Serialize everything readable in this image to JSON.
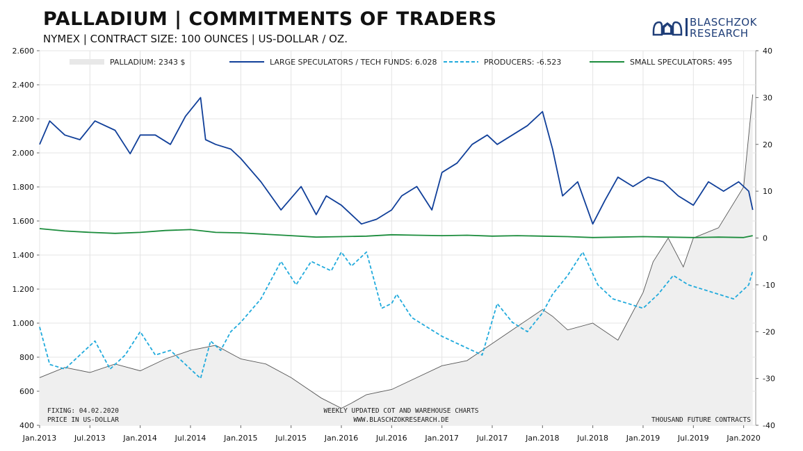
{
  "header": {
    "title": "PALLADIUM | COMMITMENTS OF TRADERS",
    "subtitle": "NYMEX | CONTRACT SIZE: 100 OUNCES | US-DOLLAR / OZ."
  },
  "logo": {
    "line1": "BLASCHZOK",
    "line2": "RESEARCH",
    "color": "#1f3e78"
  },
  "notes": {
    "fixing": "FIXING: 04.02.2020",
    "price_unit": "PRICE IN US-DOLLAR",
    "center1": "WEEKLY UPDATED COT AND WAREHOUSE CHARTS",
    "center2": "WWW.BLASCHZOKRESEARCH.DE",
    "right": "THOUSAND FUTURE CONTRACTS"
  },
  "chart_data": {
    "type": "line",
    "x_labels": [
      "Jan.2013",
      "Jul.2013",
      "Jan.2014",
      "Jul.2014",
      "Jan.2015",
      "Jul.2015",
      "Jan.2016",
      "Jul.2016",
      "Jan.2017",
      "Jul.2017",
      "Jan.2018",
      "Jul.2018",
      "Jan.2019",
      "Jul.2019",
      "Jan.2020"
    ],
    "x_range": [
      "2013-01",
      "2020-02"
    ],
    "y_left": {
      "range": [
        400,
        2600
      ],
      "ticks": [
        "400",
        "600",
        "800",
        "1.000",
        "1.200",
        "1.400",
        "1.600",
        "1.800",
        "2.000",
        "2.200",
        "2.400",
        "2.600"
      ]
    },
    "y_right": {
      "range": [
        -40,
        40
      ],
      "ticks": [
        "-40",
        "-30",
        "-20",
        "-10",
        "0",
        "10",
        "20",
        "30",
        "40"
      ]
    },
    "grid": true,
    "legend_position": "top",
    "series": [
      {
        "name": "PALLADIUM: 2343 $",
        "axis": "left",
        "style": "area",
        "color": "#e0e0e0",
        "line_color": "#555555",
        "x": [
          2013.0,
          2013.25,
          2013.5,
          2013.75,
          2014.0,
          2014.25,
          2014.5,
          2014.75,
          2015.0,
          2015.25,
          2015.5,
          2015.65,
          2015.8,
          2016.0,
          2016.1,
          2016.25,
          2016.5,
          2016.75,
          2017.0,
          2017.25,
          2017.5,
          2017.75,
          2018.0,
          2018.1,
          2018.25,
          2018.5,
          2018.75,
          2019.0,
          2019.1,
          2019.25,
          2019.4,
          2019.5,
          2019.75,
          2020.0,
          2020.09
        ],
        "values": [
          680,
          740,
          710,
          760,
          720,
          790,
          840,
          870,
          790,
          760,
          680,
          620,
          560,
          500,
          530,
          580,
          610,
          680,
          750,
          780,
          880,
          980,
          1080,
          1040,
          960,
          1000,
          900,
          1180,
          1360,
          1500,
          1330,
          1500,
          1560,
          1800,
          2343
        ]
      },
      {
        "name": "LARGE SPECULATORS / TECH FUNDS: 6.028",
        "axis": "right",
        "style": "solid",
        "color": "#103f99",
        "x": [
          2013.0,
          2013.1,
          2013.25,
          2013.4,
          2013.55,
          2013.75,
          2013.9,
          2014.0,
          2014.15,
          2014.3,
          2014.45,
          2014.6,
          2014.65,
          2014.75,
          2014.9,
          2015.0,
          2015.2,
          2015.4,
          2015.6,
          2015.75,
          2015.85,
          2016.0,
          2016.2,
          2016.35,
          2016.5,
          2016.6,
          2016.75,
          2016.9,
          2017.0,
          2017.15,
          2017.3,
          2017.45,
          2017.55,
          2017.7,
          2017.85,
          2018.0,
          2018.1,
          2018.2,
          2018.35,
          2018.5,
          2018.62,
          2018.75,
          2018.9,
          2019.05,
          2019.2,
          2019.35,
          2019.5,
          2019.65,
          2019.8,
          2019.95,
          2020.05,
          2020.09
        ],
        "values": [
          20,
          25,
          22,
          21,
          25,
          23,
          18,
          22,
          22,
          20,
          26,
          30,
          21,
          20,
          19,
          17,
          12,
          6,
          11,
          5,
          9,
          7,
          3,
          4,
          6,
          9,
          11,
          6,
          14,
          16,
          20,
          22,
          20,
          22,
          24,
          27,
          19,
          9,
          12,
          3,
          8,
          13,
          11,
          13,
          12,
          9,
          7,
          12,
          10,
          12,
          10,
          6
        ]
      },
      {
        "name": "PRODUCERS: -6.523",
        "axis": "right",
        "style": "dashed",
        "color": "#20aadc",
        "x": [
          2013.0,
          2013.1,
          2013.25,
          2013.4,
          2013.55,
          2013.7,
          2013.85,
          2014.0,
          2014.15,
          2014.3,
          2014.45,
          2014.6,
          2014.7,
          2014.8,
          2014.9,
          2015.0,
          2015.2,
          2015.4,
          2015.55,
          2015.7,
          2015.9,
          2016.0,
          2016.1,
          2016.25,
          2016.4,
          2016.5,
          2016.55,
          2016.7,
          2016.85,
          2017.0,
          2017.2,
          2017.4,
          2017.55,
          2017.7,
          2017.85,
          2018.0,
          2018.1,
          2018.25,
          2018.4,
          2018.55,
          2018.7,
          2018.85,
          2019.0,
          2019.15,
          2019.3,
          2019.45,
          2019.6,
          2019.75,
          2019.9,
          2020.05,
          2020.09
        ],
        "values": [
          -19,
          -27,
          -28,
          -25,
          -22,
          -28,
          -25,
          -20,
          -25,
          -24,
          -27,
          -30,
          -22,
          -24,
          -20,
          -18,
          -13,
          -5,
          -10,
          -5,
          -7,
          -3,
          -6,
          -3,
          -15,
          -14,
          -12,
          -17,
          -19,
          -21,
          -23,
          -25,
          -14,
          -18,
          -20,
          -16,
          -12,
          -8,
          -3,
          -10,
          -13,
          -14,
          -15,
          -12,
          -8,
          -10,
          -11,
          -12,
          -13,
          -10,
          -7
        ]
      },
      {
        "name": "SMALL SPECULATORS: 495",
        "axis": "right",
        "style": "solid",
        "color": "#1b8c3c",
        "x": [
          2013.0,
          2013.25,
          2013.5,
          2013.75,
          2014.0,
          2014.25,
          2014.5,
          2014.75,
          2015.0,
          2015.25,
          2015.5,
          2015.75,
          2016.0,
          2016.25,
          2016.5,
          2016.75,
          2017.0,
          2017.25,
          2017.5,
          2017.75,
          2018.0,
          2018.25,
          2018.5,
          2018.75,
          2019.0,
          2019.25,
          2019.5,
          2019.75,
          2020.0,
          2020.09
        ],
        "values": [
          2,
          1.5,
          1.2,
          1.0,
          1.2,
          1.6,
          1.8,
          1.2,
          1.1,
          0.8,
          0.5,
          0.2,
          0.3,
          0.4,
          0.7,
          0.6,
          0.5,
          0.6,
          0.4,
          0.5,
          0.4,
          0.3,
          0.1,
          0.2,
          0.3,
          0.2,
          0.1,
          0.2,
          0.1,
          0.5
        ]
      }
    ]
  }
}
